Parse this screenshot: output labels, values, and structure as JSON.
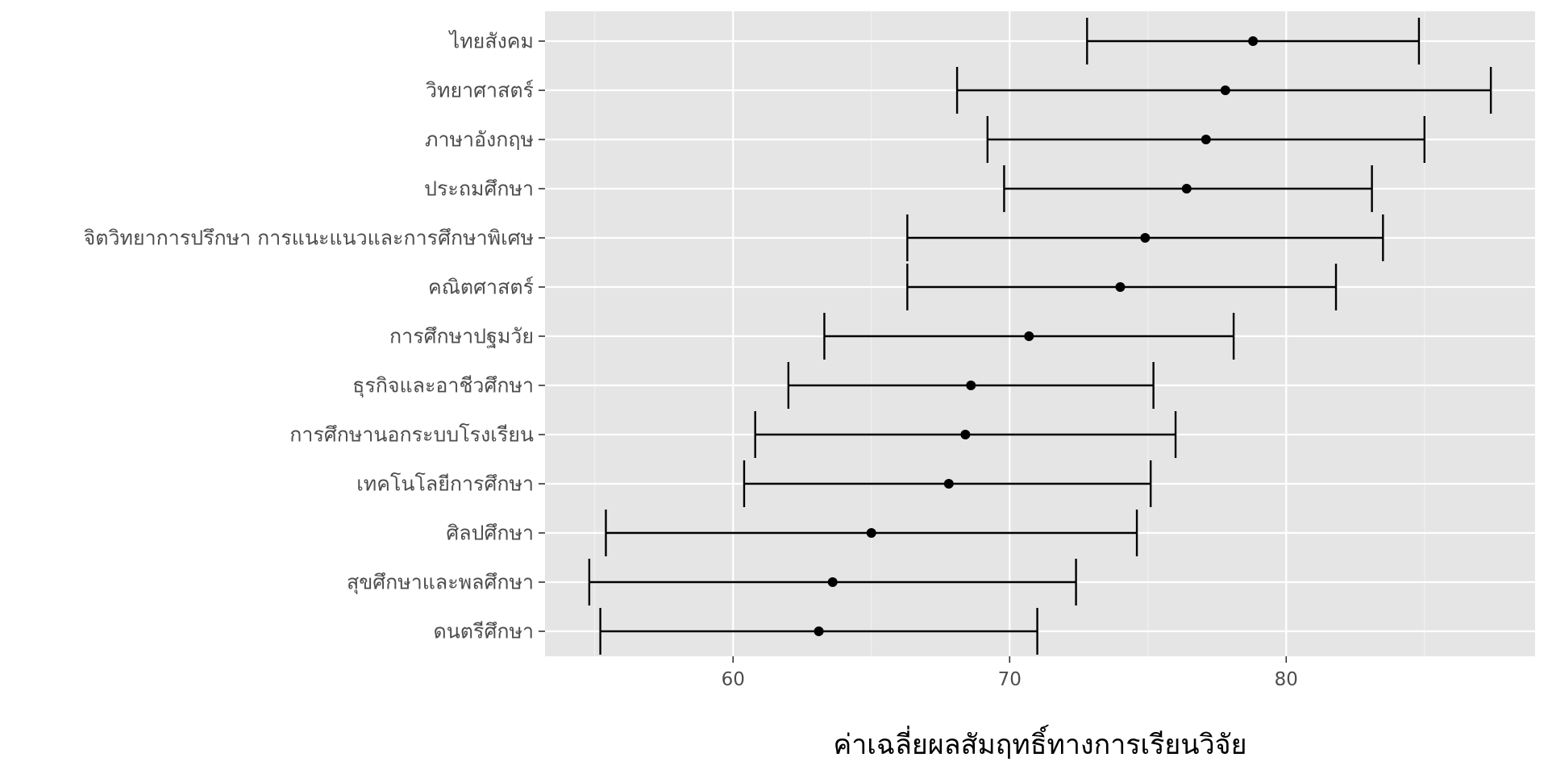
{
  "chart_data": {
    "type": "errorbar",
    "orientation": "horizontal",
    "xlabel": "ค่าเฉลี่ยผลสัมฤทธิ์ทางการเรียนวิจัย",
    "ylabel": "",
    "xlim": [
      53.2,
      89.0
    ],
    "x_ticks": [
      60,
      70,
      80
    ],
    "x_minor_ticks": [
      55,
      65,
      75,
      85
    ],
    "grid": true,
    "legend": "none",
    "categories": [
      "ไทยสังคม",
      "วิทยาศาสตร์",
      "ภาษาอังกฤษ",
      "ประถมศึกษา",
      "จิตวิทยาการปรึกษา การแนะแนวและการศึกษาพิเศษ",
      "คณิตศาสตร์",
      "การศึกษาปฐมวัย",
      "ธุรกิจและอาชีวศึกษา",
      "การศึกษานอกระบบโรงเรียน",
      "เทคโนโลยีการศึกษา",
      "ศิลปศึกษา",
      "สุขศึกษาและพลศึกษา",
      "ดนตรีศึกษา"
    ],
    "mean": [
      78.8,
      77.8,
      77.1,
      76.4,
      74.9,
      74.0,
      70.7,
      68.6,
      68.4,
      67.8,
      65.0,
      63.6,
      63.1
    ],
    "lower": [
      72.8,
      68.1,
      69.2,
      69.8,
      66.3,
      66.3,
      63.3,
      62.0,
      60.8,
      60.4,
      55.4,
      54.8,
      55.2
    ],
    "upper": [
      84.8,
      87.4,
      85.0,
      83.1,
      83.5,
      81.8,
      78.1,
      75.2,
      76.0,
      75.1,
      74.6,
      72.4,
      71.0
    ],
    "colors": {
      "panel": "#e5e5e5",
      "grid": "#ffffff",
      "mark": "#000000",
      "tick_label": "#4d4d4d"
    }
  }
}
